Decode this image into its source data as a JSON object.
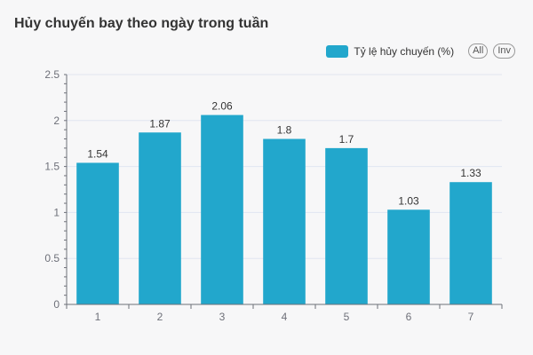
{
  "title": "Hủy chuyến bay theo ngày trong tuần",
  "legend": {
    "series_label": "Tỷ lệ hủy chuyến (%)",
    "all_label": "All",
    "inv_label": "Inv"
  },
  "colors": {
    "bar": "#22a7cc",
    "axis": "#6e7079",
    "grid": "#e0e6f1",
    "label": "#333333"
  },
  "chart_data": {
    "type": "bar",
    "title": "Hủy chuyến bay theo ngày trong tuần",
    "categories": [
      "1",
      "2",
      "3",
      "4",
      "5",
      "6",
      "7"
    ],
    "series": [
      {
        "name": "Tỷ lệ hủy chuyến (%)",
        "values": [
          1.54,
          1.87,
          2.06,
          1.8,
          1.7,
          1.03,
          1.33
        ]
      }
    ],
    "data_labels": [
      "1.54",
      "1.87",
      "2.06",
      "1.8",
      "1.7",
      "1.03",
      "1.33"
    ],
    "y_ticks": [
      "0",
      "0.5",
      "1",
      "1.5",
      "2",
      "2.5"
    ],
    "ylim": [
      0,
      2.5
    ],
    "grid": true,
    "legend_position": "top-right"
  }
}
